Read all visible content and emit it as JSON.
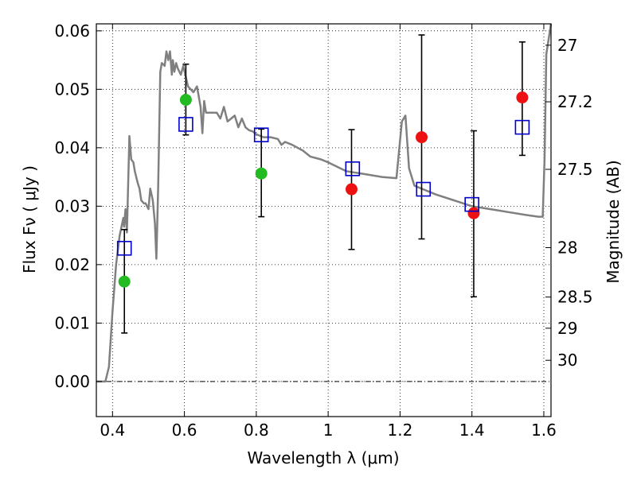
{
  "chart_data": {
    "type": "scatter",
    "xlabel": "Wavelength  λ (μm)",
    "ylabel": "Flux  Fν  ( μJy )",
    "y2label": "Magnitude (AB)",
    "xlim": [
      0.355,
      1.62
    ],
    "ylim": [
      -0.006,
      0.0612
    ],
    "x_ticks": [
      0.4,
      0.6,
      0.8,
      1.0,
      1.2,
      1.4,
      1.6
    ],
    "x_tick_labels": [
      "0.4",
      "0.6",
      "0.8",
      "1",
      "1.2",
      "1.4",
      "1.6"
    ],
    "y_ticks": [
      0.0,
      0.01,
      0.02,
      0.03,
      0.04,
      0.05,
      0.06
    ],
    "y_tick_labels": [
      "0.00",
      "0.01",
      "0.02",
      "0.03",
      "0.04",
      "0.05",
      "0.06"
    ],
    "y2_ticks": [
      27,
      27.2,
      27.5,
      28,
      28.5,
      29,
      30
    ],
    "y2_tick_labels": [
      "27",
      "27.2",
      "27.5",
      "28",
      "28.5",
      "29",
      "30"
    ],
    "grid": true,
    "zero_line": true,
    "colors": {
      "model": "#808080",
      "observed_green": "#22bb22",
      "observed_red": "#ee1111",
      "model_box": "#0000cc",
      "errorbar": "#000000"
    },
    "model_spectrum": {
      "x": [
        0.355,
        0.38,
        0.39,
        0.4,
        0.41,
        0.42,
        0.43,
        0.432,
        0.436,
        0.44,
        0.447,
        0.452,
        0.458,
        0.462,
        0.47,
        0.475,
        0.48,
        0.487,
        0.492,
        0.5,
        0.505,
        0.512,
        0.518,
        0.522,
        0.527,
        0.533,
        0.537,
        0.545,
        0.55,
        0.555,
        0.56,
        0.565,
        0.568,
        0.572,
        0.577,
        0.582,
        0.59,
        0.597,
        0.61,
        0.625,
        0.635,
        0.645,
        0.65,
        0.655,
        0.66,
        0.67,
        0.68,
        0.69,
        0.7,
        0.71,
        0.72,
        0.73,
        0.74,
        0.75,
        0.76,
        0.77,
        0.78,
        0.79,
        0.8,
        0.82,
        0.84,
        0.86,
        0.87,
        0.88,
        0.9,
        0.93,
        0.95,
        0.98,
        1.0,
        1.05,
        1.1,
        1.15,
        1.19,
        1.205,
        1.215,
        1.225,
        1.24,
        1.3,
        1.35,
        1.4,
        1.45,
        1.5,
        1.55,
        1.585,
        1.592,
        1.597,
        1.602,
        1.607,
        1.62
      ],
      "y": [
        0.0,
        0.0,
        0.0025,
        0.012,
        0.02,
        0.025,
        0.028,
        0.0265,
        0.0295,
        0.0255,
        0.042,
        0.038,
        0.0375,
        0.036,
        0.034,
        0.033,
        0.031,
        0.0305,
        0.0305,
        0.0295,
        0.033,
        0.031,
        0.027,
        0.021,
        0.033,
        0.053,
        0.0545,
        0.054,
        0.0565,
        0.055,
        0.0565,
        0.0525,
        0.055,
        0.053,
        0.0545,
        0.0535,
        0.0525,
        0.054,
        0.0505,
        0.0495,
        0.0505,
        0.047,
        0.0425,
        0.048,
        0.046,
        0.046,
        0.046,
        0.046,
        0.045,
        0.047,
        0.0445,
        0.045,
        0.0455,
        0.0435,
        0.045,
        0.0435,
        0.043,
        0.0428,
        0.0423,
        0.0418,
        0.0418,
        0.0415,
        0.0405,
        0.041,
        0.0405,
        0.0395,
        0.0385,
        0.038,
        0.0375,
        0.036,
        0.0355,
        0.035,
        0.0348,
        0.0445,
        0.0455,
        0.0365,
        0.0335,
        0.032,
        0.031,
        0.03,
        0.0295,
        0.029,
        0.0285,
        0.0282,
        0.0282,
        0.0282,
        0.038,
        0.056,
        0.062
      ]
    },
    "observed_green": {
      "x": [
        0.433,
        0.604,
        0.814
      ],
      "y": [
        0.0171,
        0.0482,
        0.0356
      ]
    },
    "observed_red": {
      "x": [
        1.065,
        1.26,
        1.405,
        1.54
      ],
      "y": [
        0.0329,
        0.0418,
        0.0288,
        0.0486
      ]
    },
    "error_bars": [
      {
        "x": 0.433,
        "ylow": 0.0083,
        "yhigh": 0.026
      },
      {
        "x": 0.604,
        "ylow": 0.0422,
        "yhigh": 0.0543
      },
      {
        "x": 0.814,
        "ylow": 0.0282,
        "yhigh": 0.0432
      },
      {
        "x": 1.065,
        "ylow": 0.0226,
        "yhigh": 0.0431
      },
      {
        "x": 1.26,
        "ylow": 0.0244,
        "yhigh": 0.0593
      },
      {
        "x": 1.405,
        "ylow": 0.0145,
        "yhigh": 0.0429
      },
      {
        "x": 1.54,
        "ylow": 0.0387,
        "yhigh": 0.0581
      }
    ],
    "model_boxes": {
      "x": [
        0.433,
        0.604,
        0.814,
        1.068,
        1.265,
        1.4,
        1.54
      ],
      "y": [
        0.0228,
        0.044,
        0.0422,
        0.0364,
        0.0329,
        0.0303,
        0.0435
      ]
    }
  }
}
